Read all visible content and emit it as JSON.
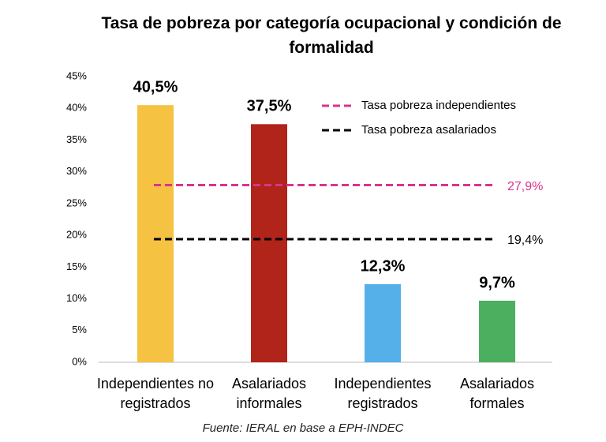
{
  "chart_data": {
    "type": "bar",
    "title": "Tasa de pobreza por categoría ocupacional y condición de formalidad",
    "categories": [
      "Independientes no registrados",
      "Asalariados informales",
      "Independientes registrados",
      "Asalariados formales"
    ],
    "values": [
      40.5,
      37.5,
      12.3,
      9.7
    ],
    "value_labels": [
      "40,5%",
      "37,5%",
      "12,3%",
      "9,7%"
    ],
    "colors": [
      "#f5c242",
      "#b0241a",
      "#55b0ea",
      "#4caf5f"
    ],
    "ylim": [
      0,
      45
    ],
    "yticks": [
      {
        "value": 0,
        "label": "0%"
      },
      {
        "value": 5,
        "label": "5%"
      },
      {
        "value": 10,
        "label": "10%"
      },
      {
        "value": 15,
        "label": "15%"
      },
      {
        "value": 20,
        "label": "20%"
      },
      {
        "value": 25,
        "label": "25%"
      },
      {
        "value": 30,
        "label": "30%"
      },
      {
        "value": 35,
        "label": "35%"
      },
      {
        "value": 40,
        "label": "40%"
      },
      {
        "value": 45,
        "label": "45%"
      }
    ],
    "reference_lines": [
      {
        "name": "Tasa pobreza independientes",
        "value": 27.9,
        "label": "27,9%",
        "color": "#d9338f"
      },
      {
        "name": "Tasa pobreza asalariados",
        "value": 19.4,
        "label": "19,4%",
        "color": "#000000"
      }
    ],
    "source": "Fuente: IERAL en base a EPH-INDEC"
  }
}
